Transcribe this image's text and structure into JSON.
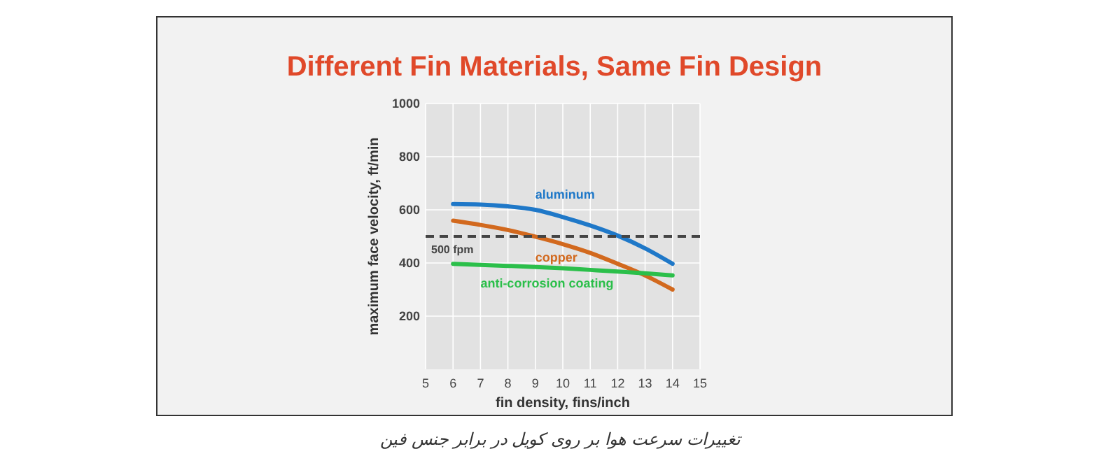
{
  "chart_data": {
    "type": "line",
    "title": "Different Fin Materials, Same Fin Design",
    "xlabel": "fin density, fins/inch",
    "ylabel": "maximum face velocity, ft/min",
    "x": [
      6,
      7,
      8,
      9,
      10,
      11,
      12,
      13,
      14
    ],
    "series": [
      {
        "name": "aluminum",
        "color": "#1f78c8",
        "values": [
          622,
          620,
          613,
          600,
          573,
          541,
          503,
          455,
          397
        ]
      },
      {
        "name": "copper",
        "color": "#d2691e",
        "values": [
          559,
          543,
          524,
          499,
          471,
          438,
          397,
          353,
          300
        ]
      },
      {
        "name": "anti-corrosion coating",
        "color": "#2bbf4a",
        "values": [
          397,
          393,
          389,
          385,
          380,
          374,
          368,
          361,
          353
        ]
      }
    ],
    "xlim": [
      5,
      15
    ],
    "xticks": [
      5,
      6,
      7,
      8,
      9,
      10,
      11,
      12,
      13,
      14,
      15
    ],
    "ylim": [
      0,
      1000
    ],
    "yticks": [
      200,
      400,
      600,
      800,
      1000
    ],
    "grid": true,
    "marker": "none",
    "line_style": "solid",
    "ref_lines": [
      {
        "axis": "y",
        "value": 500,
        "label": "500 fpm",
        "color": "#444444",
        "line_style": "dashed"
      }
    ],
    "annotations": [
      "تغییرات سرعت هوا بر روی کویل در برابر جنس فین"
    ]
  }
}
